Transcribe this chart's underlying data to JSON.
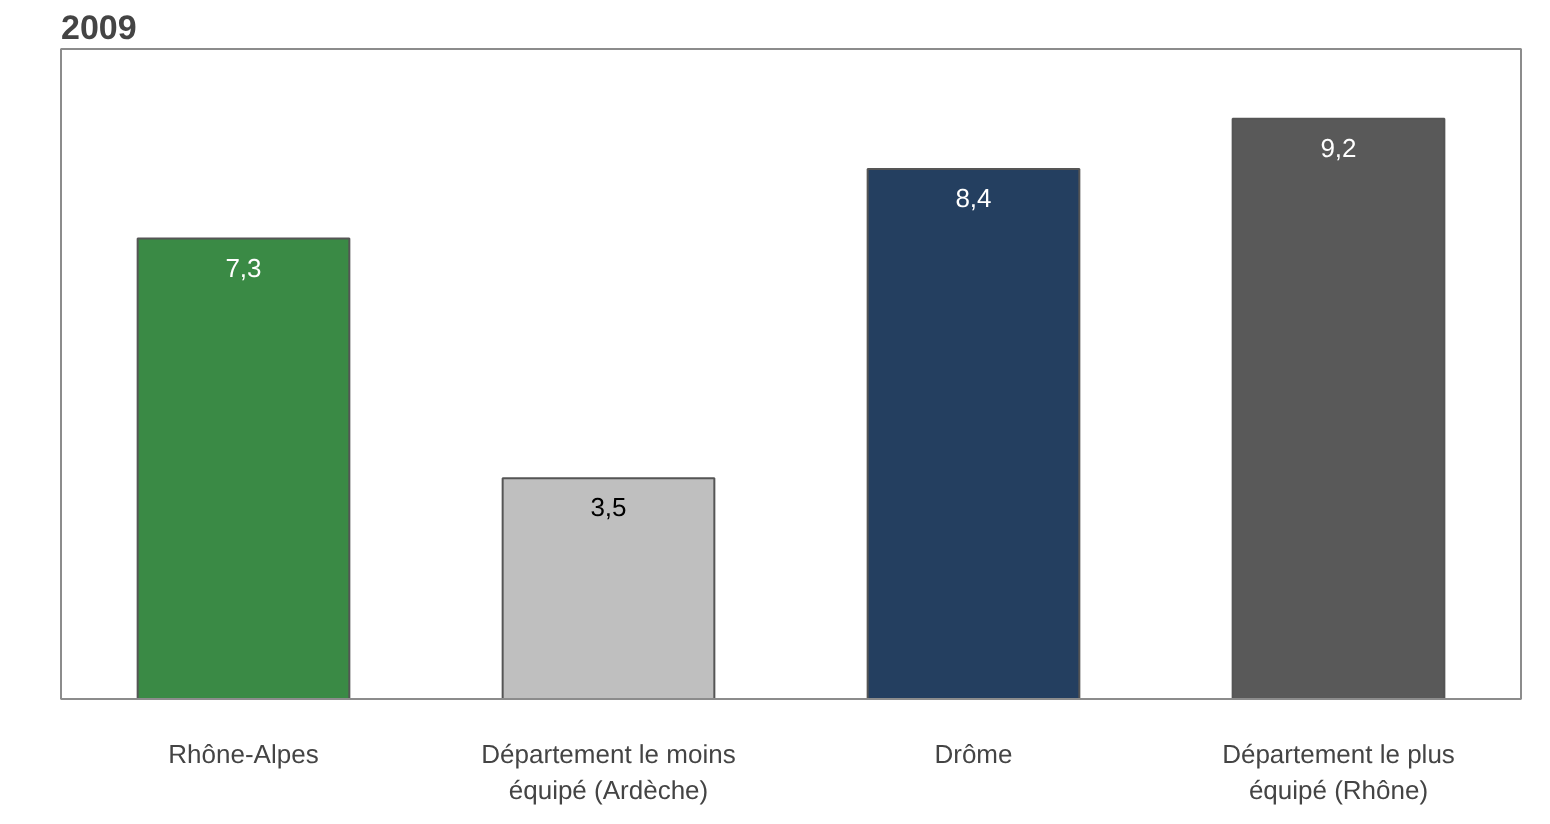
{
  "chart_data": {
    "type": "bar",
    "title": "2009",
    "categories": [
      "Rhône-Alpes",
      "Département le moins équipé (Ardèche)",
      "Drôme",
      "Département le plus équipé (Rhône)"
    ],
    "values": [
      7.3,
      3.5,
      8.4,
      9.2
    ],
    "colors": [
      "#3a8a45",
      "#bfbfbf",
      "#243f60",
      "#595959"
    ],
    "value_labels": [
      "7,3",
      "3,5",
      "8,4",
      "9,2"
    ]
  }
}
